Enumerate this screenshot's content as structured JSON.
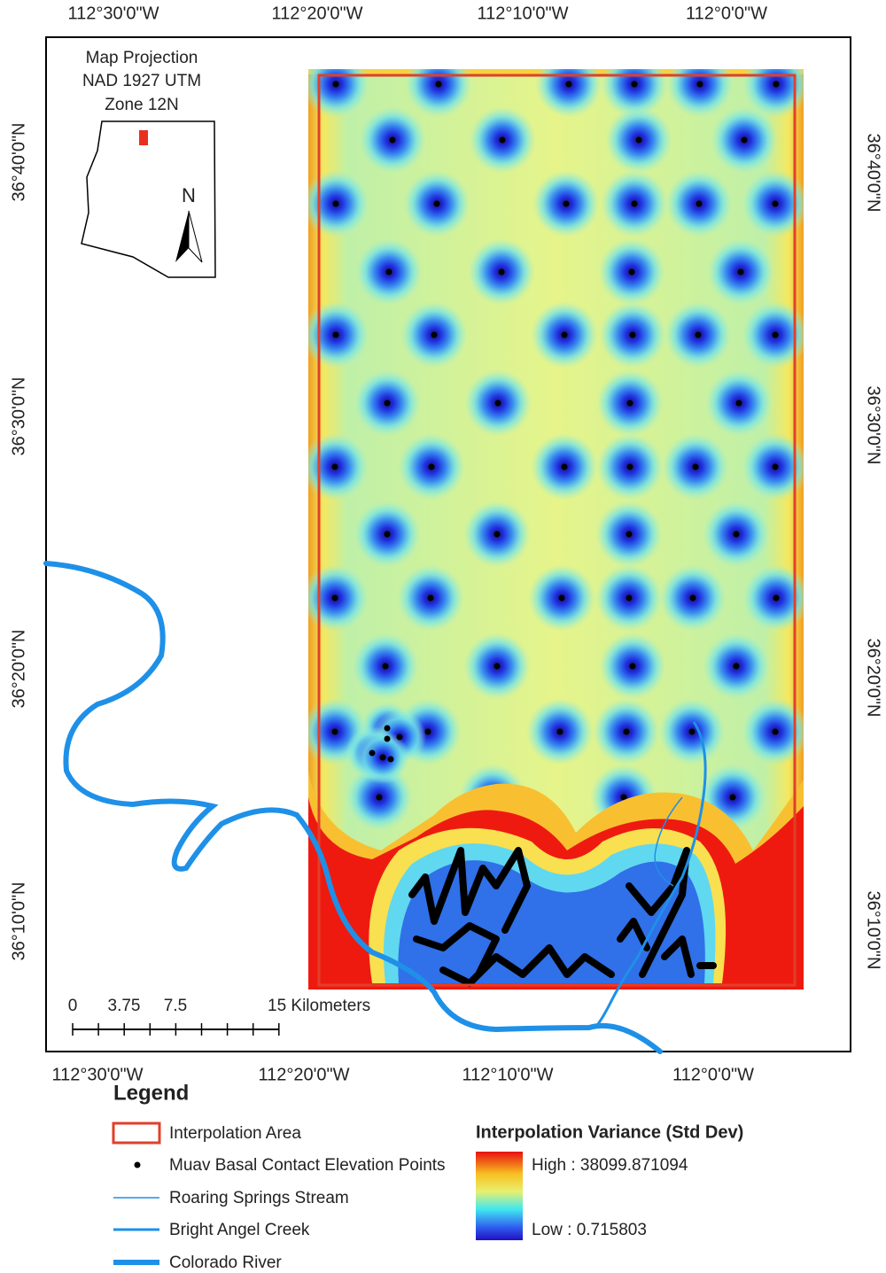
{
  "map": {
    "top_labels": [
      "112°30'0\"W",
      "112°20'0\"W",
      "112°10'0\"W",
      "112°0'0\"W"
    ],
    "bottom_labels": [
      "112°30'0\"W",
      "112°20'0\"W",
      "112°10'0\"W",
      "112°0'0\"W"
    ],
    "left_labels": [
      "36°40'0\"N",
      "36°30'0\"N",
      "36°20'0\"N",
      "36°10'0\"N"
    ],
    "right_labels": [
      "36°40'0\"N",
      "36°30'0\"N",
      "36°20'0\"N",
      "36°10'0\"N"
    ],
    "projection": [
      "Map Projection",
      "NAD 1927 UTM",
      "Zone 12N"
    ],
    "north": "N",
    "scale_labels": [
      "0",
      "3.75",
      "7.5",
      "15 Kilometers"
    ]
  },
  "legend": {
    "title": "Legend",
    "items": [
      "Interpolation Area",
      "Muav Basal Contact Elevation Points",
      "Roaring Springs Stream",
      "Bright Angel Creek",
      "Colorado River"
    ],
    "ramp_title": "Interpolation Variance (Std Dev)",
    "high": "High : 38099.871094",
    "low": "Low : 0.715803"
  }
}
